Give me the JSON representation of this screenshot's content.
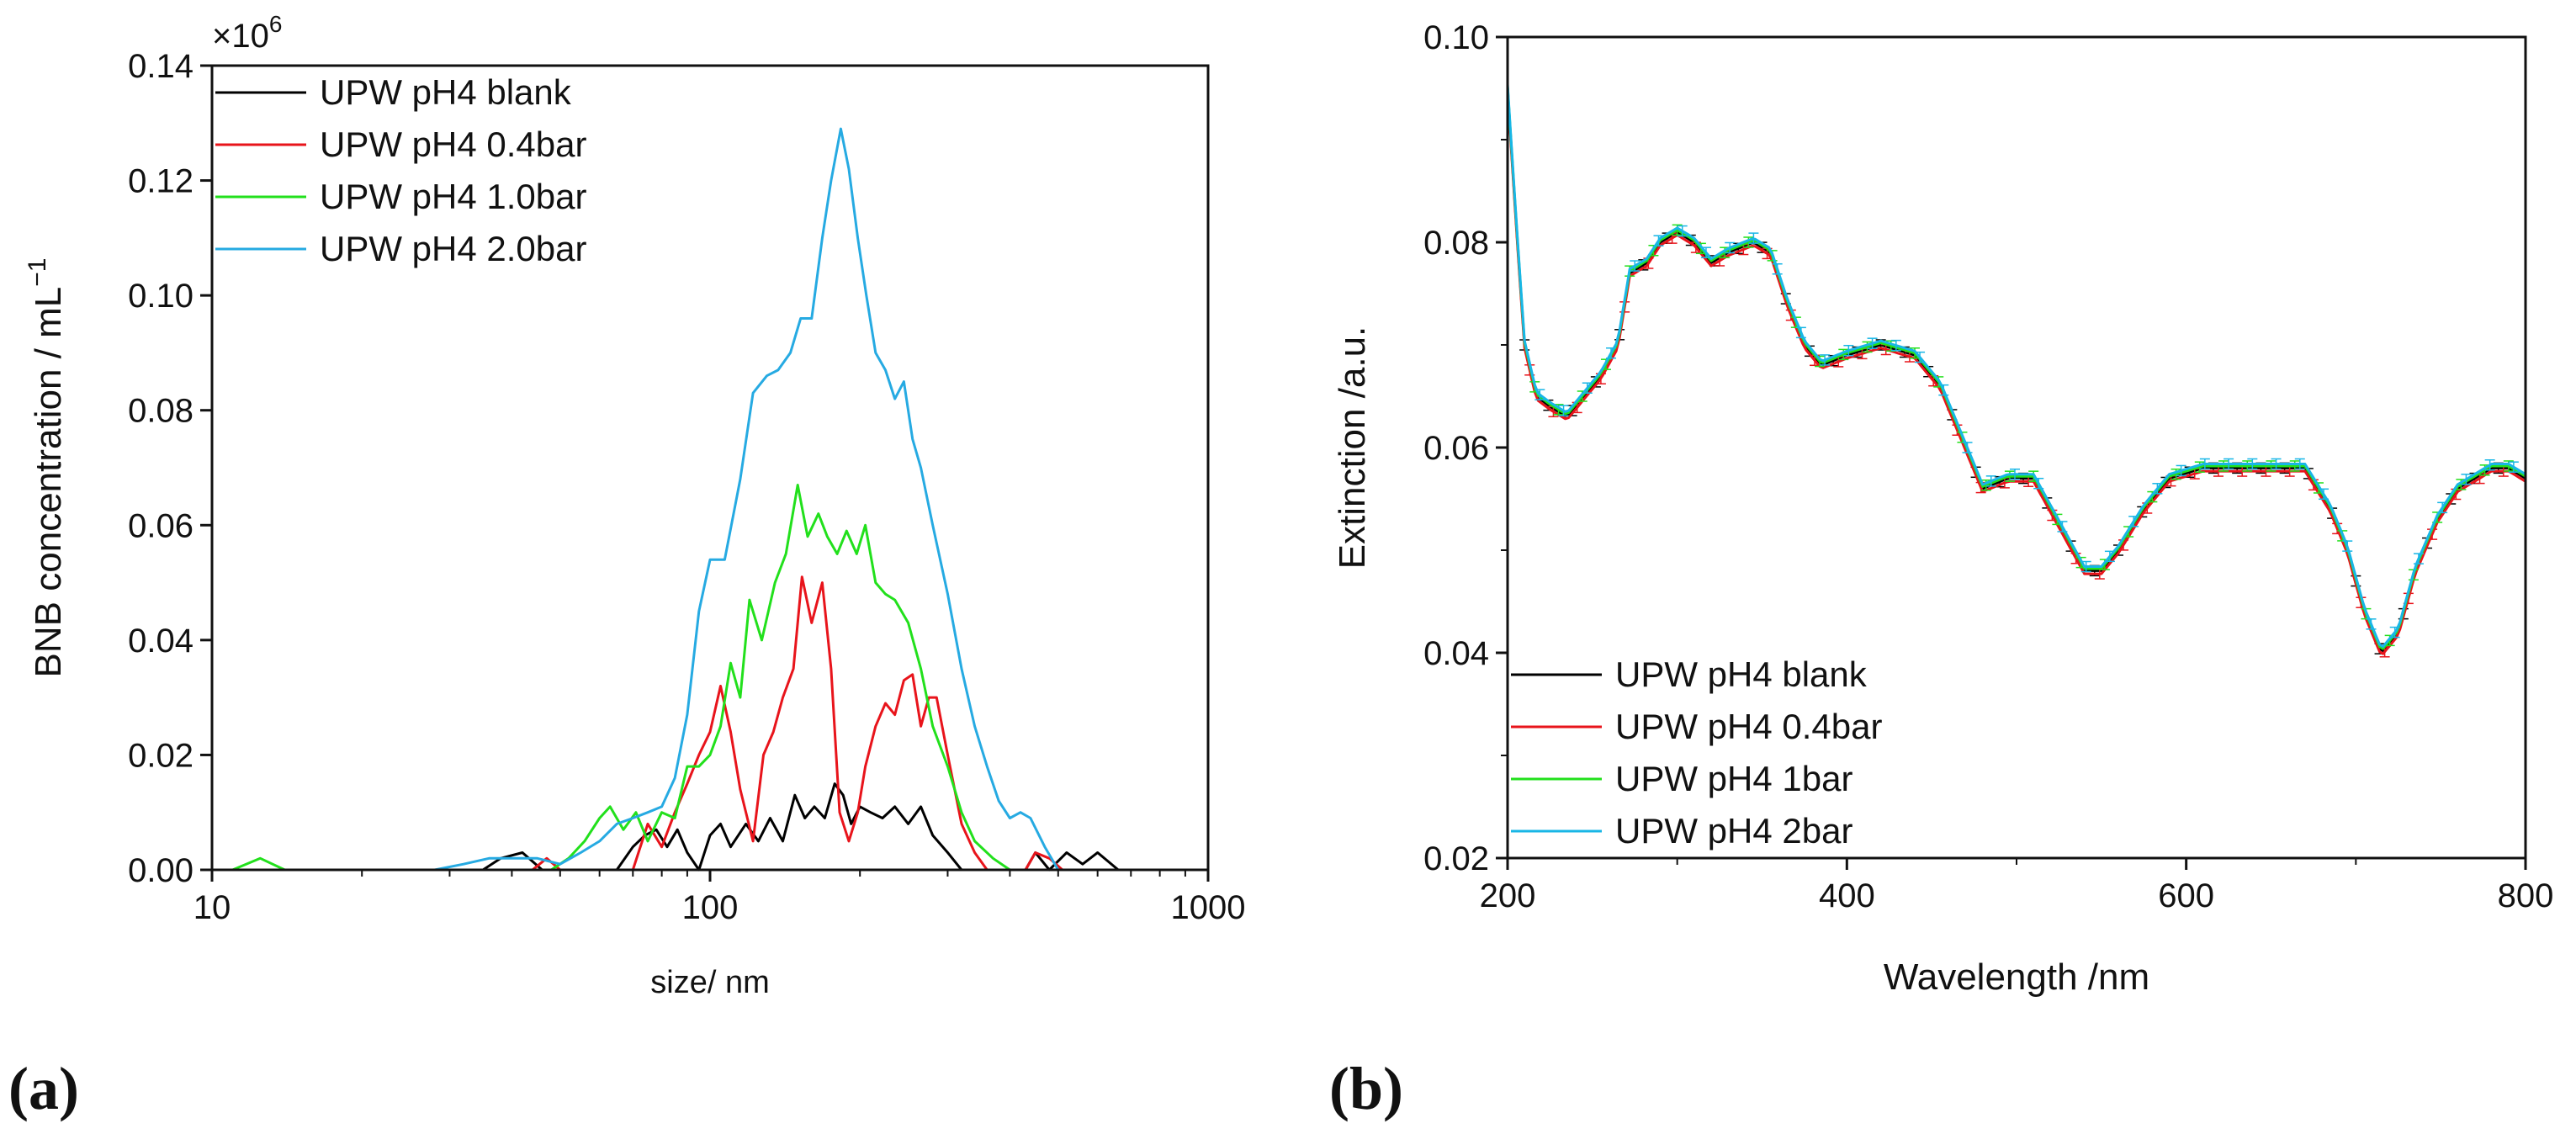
{
  "chart_data": [
    {
      "panel": "(a)",
      "type": "line",
      "xscale": "log",
      "xlim": [
        10,
        1000
      ],
      "ylim": [
        0,
        0.14
      ],
      "xlabel": "size/ nm",
      "ylabel": "BNB concentration / mL",
      "ylabel_exponent": "−1",
      "y_multiplier": "×10",
      "y_multiplier_exp": "6",
      "xticks": [
        10,
        100,
        1000
      ],
      "xtick_labels": [
        "10",
        "100",
        "1000"
      ],
      "yticks": [
        0,
        0.02,
        0.04,
        0.06,
        0.08,
        0.1,
        0.12,
        0.14
      ],
      "ytick_labels": [
        "0.00",
        "0.02",
        "0.04",
        "0.06",
        "0.08",
        "0.10",
        "0.12",
        "0.14"
      ],
      "legend_position": "top-left",
      "series": [
        {
          "name": "UPW pH4  blank",
          "color": "#000000",
          "points": [
            [
              35,
              0
            ],
            [
              38,
              0.002
            ],
            [
              42,
              0.003
            ],
            [
              46,
              0
            ],
            [
              65,
              0
            ],
            [
              70,
              0.004
            ],
            [
              74,
              0.006
            ],
            [
              78,
              0.007
            ],
            [
              82,
              0.004
            ],
            [
              86,
              0.007
            ],
            [
              90,
              0.003
            ],
            [
              95,
              0
            ],
            [
              100,
              0.006
            ],
            [
              105,
              0.008
            ],
            [
              110,
              0.004
            ],
            [
              118,
              0.008
            ],
            [
              125,
              0.005
            ],
            [
              132,
              0.009
            ],
            [
              140,
              0.005
            ],
            [
              148,
              0.013
            ],
            [
              155,
              0.009
            ],
            [
              162,
              0.011
            ],
            [
              170,
              0.009
            ],
            [
              178,
              0.015
            ],
            [
              185,
              0.013
            ],
            [
              192,
              0.008
            ],
            [
              200,
              0.011
            ],
            [
              210,
              0.01
            ],
            [
              222,
              0.009
            ],
            [
              235,
              0.011
            ],
            [
              250,
              0.008
            ],
            [
              265,
              0.011
            ],
            [
              280,
              0.006
            ],
            [
              300,
              0.003
            ],
            [
              320,
              0
            ],
            [
              430,
              0
            ],
            [
              450,
              0.003
            ],
            [
              480,
              0
            ],
            [
              520,
              0.003
            ],
            [
              560,
              0.001
            ],
            [
              600,
              0.003
            ],
            [
              660,
              0
            ]
          ]
        },
        {
          "name": "UPW pH4 0.4bar",
          "color": "#e8141b",
          "points": [
            [
              44,
              0
            ],
            [
              47,
              0.002
            ],
            [
              50,
              0
            ],
            [
              70,
              0
            ],
            [
              75,
              0.008
            ],
            [
              80,
              0.004
            ],
            [
              85,
              0.01
            ],
            [
              90,
              0.015
            ],
            [
              95,
              0.02
            ],
            [
              100,
              0.024
            ],
            [
              105,
              0.032
            ],
            [
              110,
              0.024
            ],
            [
              115,
              0.014
            ],
            [
              122,
              0.005
            ],
            [
              128,
              0.02
            ],
            [
              134,
              0.024
            ],
            [
              140,
              0.03
            ],
            [
              147,
              0.035
            ],
            [
              153,
              0.051
            ],
            [
              160,
              0.043
            ],
            [
              168,
              0.05
            ],
            [
              175,
              0.035
            ],
            [
              182,
              0.01
            ],
            [
              190,
              0.005
            ],
            [
              198,
              0.01
            ],
            [
              205,
              0.018
            ],
            [
              215,
              0.025
            ],
            [
              225,
              0.029
            ],
            [
              235,
              0.027
            ],
            [
              245,
              0.033
            ],
            [
              255,
              0.034
            ],
            [
              265,
              0.025
            ],
            [
              275,
              0.03
            ],
            [
              285,
              0.03
            ],
            [
              300,
              0.02
            ],
            [
              320,
              0.008
            ],
            [
              340,
              0.003
            ],
            [
              360,
              0
            ],
            [
              430,
              0
            ],
            [
              450,
              0.003
            ],
            [
              480,
              0.002
            ],
            [
              510,
              0
            ]
          ]
        },
        {
          "name": "UPW pH4 1.0bar",
          "color": "#22e01c",
          "points": [
            [
              11,
              0
            ],
            [
              12.5,
              0.002
            ],
            [
              14,
              0
            ],
            [
              48,
              0
            ],
            [
              52,
              0.002
            ],
            [
              56,
              0.005
            ],
            [
              60,
              0.009
            ],
            [
              63,
              0.011
            ],
            [
              67,
              0.007
            ],
            [
              71,
              0.01
            ],
            [
              75,
              0.005
            ],
            [
              80,
              0.01
            ],
            [
              85,
              0.009
            ],
            [
              90,
              0.018
            ],
            [
              95,
              0.018
            ],
            [
              100,
              0.02
            ],
            [
              105,
              0.025
            ],
            [
              110,
              0.036
            ],
            [
              115,
              0.03
            ],
            [
              120,
              0.047
            ],
            [
              127,
              0.04
            ],
            [
              135,
              0.05
            ],
            [
              142,
              0.055
            ],
            [
              150,
              0.067
            ],
            [
              157,
              0.058
            ],
            [
              165,
              0.062
            ],
            [
              172,
              0.058
            ],
            [
              180,
              0.055
            ],
            [
              188,
              0.059
            ],
            [
              197,
              0.055
            ],
            [
              205,
              0.06
            ],
            [
              215,
              0.05
            ],
            [
              225,
              0.048
            ],
            [
              235,
              0.047
            ],
            [
              250,
              0.043
            ],
            [
              265,
              0.035
            ],
            [
              280,
              0.025
            ],
            [
              300,
              0.018
            ],
            [
              320,
              0.01
            ],
            [
              340,
              0.005
            ],
            [
              370,
              0.002
            ],
            [
              400,
              0
            ]
          ]
        },
        {
          "name": "UPW pH4 2.0bar",
          "color": "#26aae2",
          "points": [
            [
              28,
              0
            ],
            [
              32,
              0.001
            ],
            [
              36,
              0.002
            ],
            [
              40,
              0.002
            ],
            [
              45,
              0.002
            ],
            [
              50,
              0.001
            ],
            [
              55,
              0.003
            ],
            [
              60,
              0.005
            ],
            [
              65,
              0.008
            ],
            [
              70,
              0.009
            ],
            [
              75,
              0.01
            ],
            [
              80,
              0.011
            ],
            [
              85,
              0.016
            ],
            [
              90,
              0.027
            ],
            [
              95,
              0.045
            ],
            [
              100,
              0.054
            ],
            [
              107,
              0.054
            ],
            [
              115,
              0.068
            ],
            [
              122,
              0.083
            ],
            [
              130,
              0.086
            ],
            [
              137,
              0.087
            ],
            [
              145,
              0.09
            ],
            [
              152,
              0.096
            ],
            [
              160,
              0.096
            ],
            [
              168,
              0.11
            ],
            [
              175,
              0.12
            ],
            [
              183,
              0.129
            ],
            [
              190,
              0.122
            ],
            [
              198,
              0.11
            ],
            [
              206,
              0.1
            ],
            [
              215,
              0.09
            ],
            [
              225,
              0.087
            ],
            [
              235,
              0.082
            ],
            [
              245,
              0.085
            ],
            [
              255,
              0.075
            ],
            [
              265,
              0.07
            ],
            [
              280,
              0.06
            ],
            [
              300,
              0.048
            ],
            [
              320,
              0.035
            ],
            [
              340,
              0.025
            ],
            [
              360,
              0.018
            ],
            [
              380,
              0.012
            ],
            [
              400,
              0.009
            ],
            [
              420,
              0.01
            ],
            [
              440,
              0.009
            ],
            [
              470,
              0.004
            ],
            [
              500,
              0
            ]
          ]
        }
      ]
    },
    {
      "panel": "(b)",
      "type": "line",
      "xscale": "linear",
      "xlim": [
        200,
        800
      ],
      "ylim": [
        0.02,
        0.1
      ],
      "xlabel": "Wavelength /nm",
      "ylabel": "Extinction /a.u.",
      "xticks": [
        200,
        400,
        600,
        800
      ],
      "xtick_labels": [
        "200",
        "400",
        "600",
        "800"
      ],
      "yticks": [
        0.02,
        0.04,
        0.06,
        0.08,
        0.1
      ],
      "ytick_labels": [
        "0.02",
        "0.04",
        "0.06",
        "0.08",
        "0.10"
      ],
      "legend_position": "bottom-left",
      "error_bars": true,
      "series": [
        {
          "name": "UPW pH4 blank",
          "color": "#000000",
          "offset": 0
        },
        {
          "name": "UPW pH4 0.4bar",
          "color": "#e8141b",
          "offset": -0.0003
        },
        {
          "name": "UPW pH4 1bar",
          "color": "#22e01c",
          "offset": 0.0002
        },
        {
          "name": "UPW pH4 2bar",
          "color": "#18b6e6",
          "offset": 0.0004
        }
      ],
      "base_curve": [
        [
          200,
          0.095
        ],
        [
          205,
          0.082
        ],
        [
          210,
          0.07
        ],
        [
          217,
          0.065
        ],
        [
          225,
          0.064
        ],
        [
          235,
          0.063
        ],
        [
          245,
          0.065
        ],
        [
          255,
          0.067
        ],
        [
          265,
          0.07
        ],
        [
          272,
          0.077
        ],
        [
          282,
          0.078
        ],
        [
          290,
          0.08
        ],
        [
          300,
          0.081
        ],
        [
          310,
          0.08
        ],
        [
          320,
          0.078
        ],
        [
          330,
          0.079
        ],
        [
          345,
          0.08
        ],
        [
          355,
          0.079
        ],
        [
          365,
          0.074
        ],
        [
          375,
          0.07
        ],
        [
          385,
          0.068
        ],
        [
          400,
          0.069
        ],
        [
          420,
          0.07
        ],
        [
          440,
          0.069
        ],
        [
          455,
          0.066
        ],
        [
          470,
          0.06
        ],
        [
          480,
          0.056
        ],
        [
          495,
          0.057
        ],
        [
          510,
          0.057
        ],
        [
          520,
          0.054
        ],
        [
          530,
          0.051
        ],
        [
          540,
          0.048
        ],
        [
          550,
          0.048
        ],
        [
          560,
          0.05
        ],
        [
          575,
          0.054
        ],
        [
          590,
          0.057
        ],
        [
          610,
          0.058
        ],
        [
          630,
          0.058
        ],
        [
          650,
          0.058
        ],
        [
          670,
          0.058
        ],
        [
          685,
          0.054
        ],
        [
          695,
          0.05
        ],
        [
          705,
          0.044
        ],
        [
          715,
          0.04
        ],
        [
          725,
          0.042
        ],
        [
          735,
          0.048
        ],
        [
          748,
          0.053
        ],
        [
          760,
          0.056
        ],
        [
          770,
          0.057
        ],
        [
          780,
          0.058
        ],
        [
          790,
          0.058
        ],
        [
          800,
          0.057
        ]
      ]
    }
  ]
}
